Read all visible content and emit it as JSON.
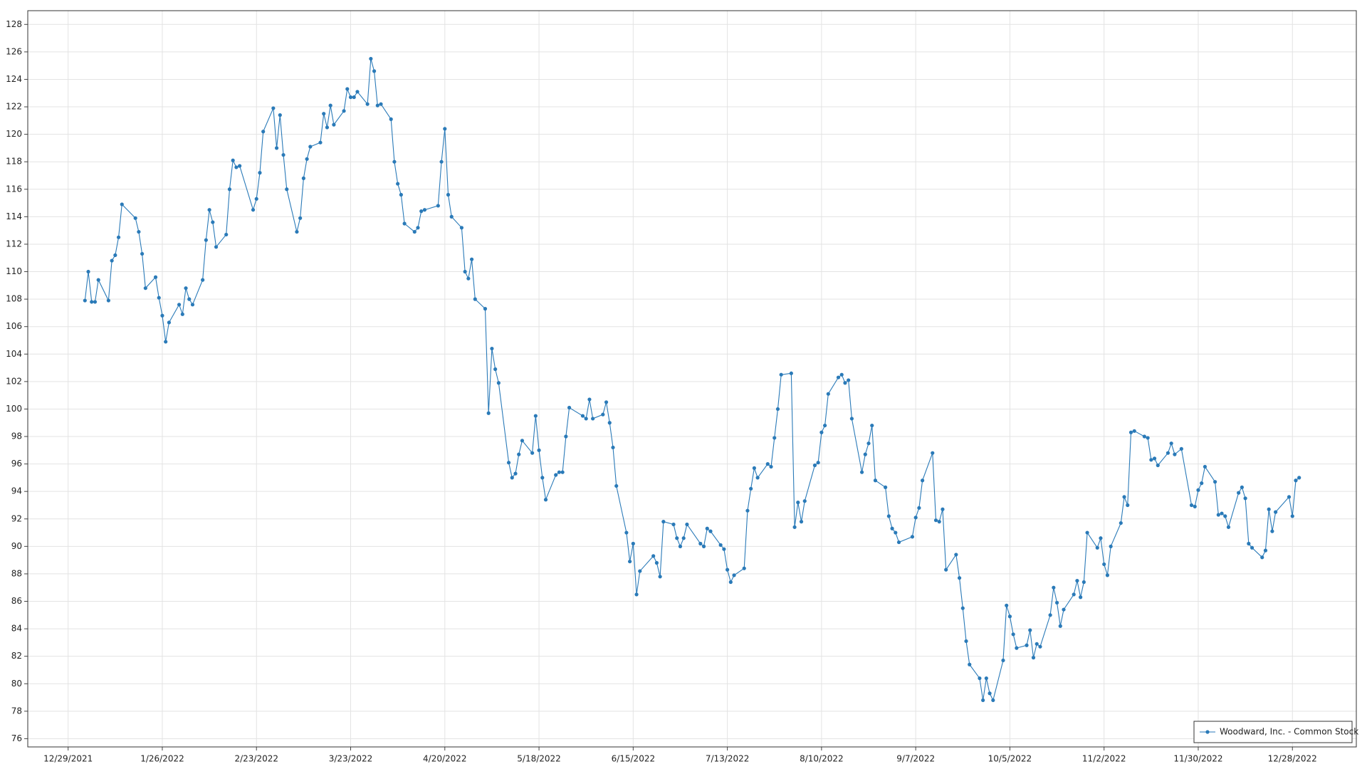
{
  "chart_data": {
    "type": "line",
    "x": [
      "1/3/2022",
      "1/4/2022",
      "1/5/2022",
      "1/6/2022",
      "1/7/2022",
      "1/10/2022",
      "1/11/2022",
      "1/12/2022",
      "1/13/2022",
      "1/14/2022",
      "1/18/2022",
      "1/19/2022",
      "1/20/2022",
      "1/21/2022",
      "1/24/2022",
      "1/25/2022",
      "1/26/2022",
      "1/27/2022",
      "1/28/2022",
      "1/31/2022",
      "2/1/2022",
      "2/2/2022",
      "2/3/2022",
      "2/4/2022",
      "2/7/2022",
      "2/8/2022",
      "2/9/2022",
      "2/10/2022",
      "2/11/2022",
      "2/14/2022",
      "2/15/2022",
      "2/16/2022",
      "2/17/2022",
      "2/18/2022",
      "2/22/2022",
      "2/23/2022",
      "2/24/2022",
      "2/25/2022",
      "2/28/2022",
      "3/1/2022",
      "3/2/2022",
      "3/3/2022",
      "3/4/2022",
      "3/7/2022",
      "3/8/2022",
      "3/9/2022",
      "3/10/2022",
      "3/11/2022",
      "3/14/2022",
      "3/15/2022",
      "3/16/2022",
      "3/17/2022",
      "3/18/2022",
      "3/21/2022",
      "3/22/2022",
      "3/23/2022",
      "3/24/2022",
      "3/25/2022",
      "3/28/2022",
      "3/29/2022",
      "3/30/2022",
      "3/31/2022",
      "4/1/2022",
      "4/4/2022",
      "4/5/2022",
      "4/6/2022",
      "4/7/2022",
      "4/8/2022",
      "4/11/2022",
      "4/12/2022",
      "4/13/2022",
      "4/14/2022",
      "4/18/2022",
      "4/19/2022",
      "4/20/2022",
      "4/21/2022",
      "4/22/2022",
      "4/25/2022",
      "4/26/2022",
      "4/27/2022",
      "4/28/2022",
      "4/29/2022",
      "5/2/2022",
      "5/3/2022",
      "5/4/2022",
      "5/5/2022",
      "5/6/2022",
      "5/9/2022",
      "5/10/2022",
      "5/11/2022",
      "5/12/2022",
      "5/13/2022",
      "5/16/2022",
      "5/17/2022",
      "5/18/2022",
      "5/19/2022",
      "5/20/2022",
      "5/23/2022",
      "5/24/2022",
      "5/25/2022",
      "5/26/2022",
      "5/27/2022",
      "5/31/2022",
      "6/1/2022",
      "6/2/2022",
      "6/3/2022",
      "6/6/2022",
      "6/7/2022",
      "6/8/2022",
      "6/9/2022",
      "6/10/2022",
      "6/13/2022",
      "6/14/2022",
      "6/15/2022",
      "6/16/2022",
      "6/17/2022",
      "6/21/2022",
      "6/22/2022",
      "6/23/2022",
      "6/24/2022",
      "6/27/2022",
      "6/28/2022",
      "6/29/2022",
      "6/30/2022",
      "7/1/2022",
      "7/5/2022",
      "7/6/2022",
      "7/7/2022",
      "7/8/2022",
      "7/11/2022",
      "7/12/2022",
      "7/13/2022",
      "7/14/2022",
      "7/15/2022",
      "7/18/2022",
      "7/19/2022",
      "7/20/2022",
      "7/21/2022",
      "7/22/2022",
      "7/25/2022",
      "7/26/2022",
      "7/27/2022",
      "7/28/2022",
      "7/29/2022",
      "8/1/2022",
      "8/2/2022",
      "8/3/2022",
      "8/4/2022",
      "8/5/2022",
      "8/8/2022",
      "8/9/2022",
      "8/10/2022",
      "8/11/2022",
      "8/12/2022",
      "8/15/2022",
      "8/16/2022",
      "8/17/2022",
      "8/18/2022",
      "8/19/2022",
      "8/22/2022",
      "8/23/2022",
      "8/24/2022",
      "8/25/2022",
      "8/26/2022",
      "8/29/2022",
      "8/30/2022",
      "8/31/2022",
      "9/1/2022",
      "9/2/2022",
      "9/6/2022",
      "9/7/2022",
      "9/8/2022",
      "9/9/2022",
      "9/12/2022",
      "9/13/2022",
      "9/14/2022",
      "9/15/2022",
      "9/16/2022",
      "9/19/2022",
      "9/20/2022",
      "9/21/2022",
      "9/22/2022",
      "9/23/2022",
      "9/26/2022",
      "9/27/2022",
      "9/28/2022",
      "9/29/2022",
      "9/30/2022",
      "10/3/2022",
      "10/4/2022",
      "10/5/2022",
      "10/6/2022",
      "10/7/2022",
      "10/10/2022",
      "10/11/2022",
      "10/12/2022",
      "10/13/2022",
      "10/14/2022",
      "10/17/2022",
      "10/18/2022",
      "10/19/2022",
      "10/20/2022",
      "10/21/2022",
      "10/24/2022",
      "10/25/2022",
      "10/26/2022",
      "10/27/2022",
      "10/28/2022",
      "10/31/2022",
      "11/1/2022",
      "11/2/2022",
      "11/3/2022",
      "11/4/2022",
      "11/7/2022",
      "11/8/2022",
      "11/9/2022",
      "11/10/2022",
      "11/11/2022",
      "11/14/2022",
      "11/15/2022",
      "11/16/2022",
      "11/17/2022",
      "11/18/2022",
      "11/21/2022",
      "11/22/2022",
      "11/23/2022",
      "11/25/2022",
      "11/28/2022",
      "11/29/2022",
      "11/30/2022",
      "12/1/2022",
      "12/2/2022",
      "12/5/2022",
      "12/6/2022",
      "12/7/2022",
      "12/8/2022",
      "12/9/2022",
      "12/12/2022",
      "12/13/2022",
      "12/14/2022",
      "12/15/2022",
      "12/16/2022",
      "12/19/2022",
      "12/20/2022",
      "12/21/2022",
      "12/22/2022",
      "12/23/2022",
      "12/27/2022",
      "12/28/2022",
      "12/29/2022",
      "12/30/2022"
    ],
    "series": [
      {
        "name": "Woodward, Inc. - Common Stock",
        "color": "#2a7ab8",
        "values": [
          107.9,
          110.0,
          107.8,
          107.8,
          109.4,
          107.9,
          110.8,
          111.2,
          112.5,
          114.9,
          113.9,
          112.9,
          111.3,
          108.8,
          109.6,
          108.1,
          106.8,
          104.9,
          106.3,
          107.6,
          106.9,
          108.8,
          108.0,
          107.6,
          109.4,
          112.3,
          114.5,
          113.6,
          111.8,
          112.7,
          116.0,
          118.1,
          117.6,
          117.7,
          114.5,
          115.3,
          117.2,
          120.2,
          121.9,
          119.0,
          121.4,
          118.5,
          116.0,
          112.9,
          113.9,
          116.8,
          118.2,
          119.1,
          119.4,
          121.5,
          120.5,
          122.1,
          120.7,
          121.7,
          123.3,
          122.7,
          122.7,
          123.1,
          122.2,
          125.5,
          124.6,
          122.1,
          122.2,
          121.1,
          118.0,
          116.4,
          115.6,
          113.5,
          112.9,
          113.2,
          114.4,
          114.5,
          114.8,
          118.0,
          120.4,
          115.6,
          114.0,
          113.2,
          110.0,
          109.5,
          110.9,
          108.0,
          107.3,
          99.7,
          104.4,
          102.9,
          101.9,
          96.1,
          95.0,
          95.3,
          96.7,
          97.7,
          96.8,
          99.5,
          97.0,
          95.0,
          93.4,
          95.2,
          95.4,
          95.4,
          98.0,
          100.1,
          99.5,
          99.3,
          100.7,
          99.3,
          99.6,
          100.5,
          99.0,
          97.2,
          94.4,
          91.0,
          88.9,
          90.2,
          86.5,
          88.2,
          89.3,
          88.8,
          87.8,
          91.8,
          91.6,
          90.6,
          90.0,
          90.6,
          91.6,
          90.2,
          90.0,
          91.3,
          91.1,
          90.1,
          89.8,
          88.3,
          87.4,
          87.9,
          88.4,
          92.6,
          94.2,
          95.7,
          95.0,
          96.0,
          95.8,
          97.9,
          100.0,
          102.5,
          102.6,
          91.4,
          93.2,
          91.8,
          93.3,
          95.9,
          96.1,
          98.3,
          98.8,
          101.1,
          102.3,
          102.5,
          101.9,
          102.1,
          99.3,
          95.4,
          96.7,
          97.5,
          98.8,
          94.8,
          94.3,
          92.2,
          91.3,
          91.0,
          90.3,
          90.7,
          92.1,
          92.8,
          94.8,
          96.8,
          91.9,
          91.8,
          92.7,
          88.3,
          89.4,
          87.7,
          85.5,
          83.1,
          81.4,
          80.4,
          78.8,
          80.4,
          79.3,
          78.8,
          81.7,
          85.7,
          84.9,
          83.6,
          82.6,
          82.8,
          83.9,
          81.9,
          82.9,
          82.7,
          85.0,
          87.0,
          85.9,
          84.2,
          85.4,
          86.5,
          87.5,
          86.3,
          87.4,
          91.0,
          89.9,
          90.6,
          88.7,
          87.9,
          90.0,
          91.7,
          93.6,
          93.0,
          98.3,
          98.4,
          98.0,
          97.9,
          96.3,
          96.4,
          95.9,
          96.8,
          97.5,
          96.7,
          97.1,
          93.0,
          92.9,
          94.1,
          94.6,
          95.8,
          94.7,
          92.3,
          92.4,
          92.2,
          91.4,
          93.9,
          94.3,
          93.5,
          90.2,
          89.9,
          89.2,
          89.7,
          92.7,
          91.1,
          92.5,
          93.6,
          92.2,
          94.8,
          95.0
        ]
      }
    ],
    "xlim": [
      "12/17/2021",
      "1/16/2023"
    ],
    "xticks": [
      "12/29/2021",
      "1/26/2022",
      "2/23/2022",
      "3/23/2022",
      "4/20/2022",
      "5/18/2022",
      "6/15/2022",
      "7/13/2022",
      "8/10/2022",
      "9/7/2022",
      "10/5/2022",
      "11/2/2022",
      "11/30/2022",
      "12/28/2022"
    ],
    "ylim": [
      75.4,
      129
    ],
    "yticks": [
      76,
      78,
      80,
      82,
      84,
      86,
      88,
      90,
      92,
      94,
      96,
      98,
      100,
      102,
      104,
      106,
      108,
      110,
      112,
      114,
      116,
      118,
      120,
      122,
      124,
      126,
      128
    ],
    "grid": true,
    "legend": "lower right"
  }
}
